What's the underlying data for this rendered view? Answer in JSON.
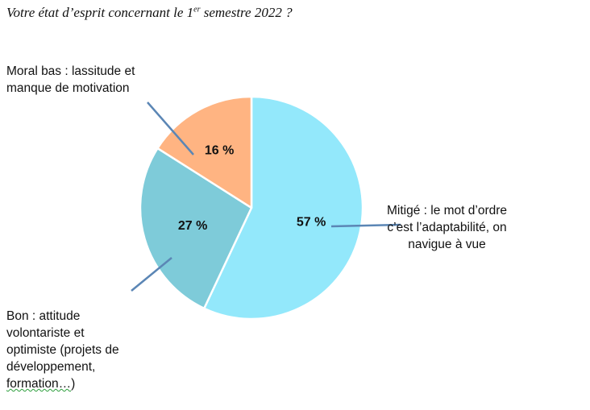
{
  "chart_data": {
    "type": "pie",
    "title_main": "Votre état d’esprit concernant le 1",
    "title_sup": "er",
    "title_end": " semestre 2022 ?",
    "slices": [
      {
        "key": "mitige",
        "value": 57,
        "value_label": "57 %",
        "color": "#93E8FB",
        "label": "Mitigé : le mot d’ordre\nc’est l’adaptabilité, on\nnavigue à vue"
      },
      {
        "key": "bon",
        "value": 27,
        "value_label": "27 %",
        "color": "#7ECBD9",
        "label_main": "Bon : attitude\nvolontariste et\noptimiste (projets de\ndéveloppement,\n",
        "label_underlined": "formation…",
        "label_end": ")"
      },
      {
        "key": "moral",
        "value": 16,
        "value_label": "16 %",
        "color": "#FFB482",
        "label": "Moral bas : lassitude et\nmanque de motivation"
      }
    ],
    "leader_color": "#5B86B5",
    "slice_border_color": "#ffffff"
  }
}
